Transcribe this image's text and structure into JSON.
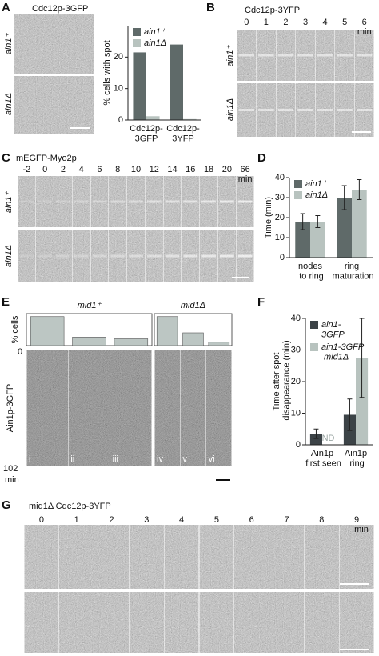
{
  "panels": {
    "A": {
      "letter": "A",
      "label": "Cdc12p-3GFP",
      "rows": [
        "ain1⁺",
        "ain1Δ"
      ]
    },
    "B": {
      "letter": "B",
      "label": "Cdc12p-3YFP",
      "times": [
        "0",
        "1",
        "2",
        "3",
        "4",
        "5",
        "6"
      ],
      "unit": "min",
      "rows": [
        "ain1⁺",
        "ain1Δ"
      ]
    },
    "C": {
      "letter": "C",
      "label": "mEGFP-Myo2p",
      "times": [
        "-2",
        "0",
        "2",
        "4",
        "6",
        "8",
        "10",
        "12",
        "14",
        "16",
        "18",
        "20",
        "66"
      ],
      "unit": "min",
      "rows": [
        "ain1⁺",
        "ain1Δ"
      ]
    },
    "D": {
      "letter": "D"
    },
    "E": {
      "letter": "E",
      "label": "Ain1p-3GFP",
      "start": "0",
      "end": "102",
      "unit": "min"
    },
    "F": {
      "letter": "F"
    },
    "G": {
      "letter": "G",
      "label": "mid1Δ Cdc12p-3YFP",
      "times": [
        "0",
        "1",
        "2",
        "3",
        "4",
        "5",
        "6",
        "7",
        "8",
        "9"
      ],
      "unit": "min"
    }
  },
  "chart_data": [
    {
      "type": "bar",
      "ylabel": "% cells with spot",
      "categories": [
        "Cdc12p-3GFP",
        "Cdc12p-3YFP"
      ],
      "series": [
        {
          "name": "ain1⁺",
          "color": "#5f6a69",
          "values": [
            21.5,
            24
          ]
        },
        {
          "name": "ain1Δ",
          "color": "#b8c3bf",
          "values": [
            1.2,
            0.3
          ]
        }
      ],
      "ylim": [
        0,
        30
      ],
      "yticks": [
        0,
        10,
        20
      ],
      "legend": "upper left"
    },
    {
      "type": "bar",
      "ylabel": "Time (min)",
      "categories": [
        "nodes to ring",
        "ring maturation"
      ],
      "series": [
        {
          "name": "ain1⁺",
          "color": "#5f6a69",
          "values": [
            18,
            30
          ],
          "errors": [
            4,
            6
          ]
        },
        {
          "name": "ain1Δ",
          "color": "#b8c3bf",
          "values": [
            18,
            34
          ],
          "errors": [
            3,
            5
          ]
        }
      ],
      "ylim": [
        0,
        40
      ],
      "yticks": [
        0,
        10,
        20,
        30,
        40
      ],
      "legend": "upper left"
    },
    {
      "type": "bar",
      "title": "mid1⁺",
      "ylabel": "% cells",
      "categories": [
        "i",
        "ii",
        "iii"
      ],
      "values": [
        68,
        20,
        16
      ],
      "color": "#bcc6c3",
      "ylim": [
        0,
        75
      ]
    },
    {
      "type": "bar",
      "title": "mid1Δ",
      "categories": [
        "iv",
        "v",
        "vi"
      ],
      "values": [
        68,
        30,
        8
      ],
      "color": "#bcc6c3",
      "ylim": [
        0,
        75
      ]
    },
    {
      "type": "bar",
      "ylabel": "Time after spot disappearance (min)",
      "categories": [
        "Ain1p first seen",
        "Ain1p ring"
      ],
      "series": [
        {
          "name": "ain1-3GFP",
          "color": "#3c4347",
          "values": [
            3.5,
            9.5
          ],
          "errors": [
            1.5,
            5
          ]
        },
        {
          "name": "ain1-3GFP mid1Δ",
          "color": "#b8c3bf",
          "values": [
            null,
            27.5
          ],
          "errors": [
            null,
            12.5
          ]
        }
      ],
      "ylim": [
        0,
        40
      ],
      "yticks": [
        0,
        10,
        20,
        30,
        40
      ],
      "legend": "upper left",
      "annotations": [
        "ND"
      ]
    }
  ]
}
